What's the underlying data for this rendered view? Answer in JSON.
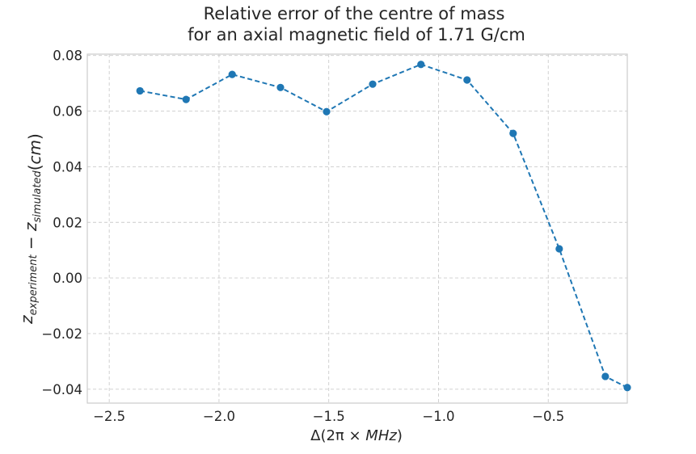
{
  "chart_data": {
    "type": "line",
    "title_lines": [
      "Relative error of the centre of mass",
      "for an axial magnetic field of 1.71 G/cm"
    ],
    "xlabel": "Δ(2π × MHz)",
    "ylabel": "z_{experiment} − z_{simulated}(cm)",
    "xlim": [
      -2.6,
      -0.14
    ],
    "ylim": [
      -0.045,
      0.0805
    ],
    "x_ticks": [
      -2.5,
      -2.0,
      -1.5,
      -1.0,
      -0.5
    ],
    "x_tick_labels": [
      "−2.5",
      "−2.0",
      "−1.5",
      "−1.0",
      "−0.5"
    ],
    "y_ticks": [
      0.08,
      0.06,
      0.04,
      0.02,
      0.0,
      -0.02,
      -0.04
    ],
    "y_tick_labels": [
      "0.08",
      "0.06",
      "0.04",
      "0.02",
      "0.00",
      "−0.02",
      "−0.04"
    ],
    "grid": true,
    "series": [
      {
        "color": "#1f77b4",
        "line_style": "dashed",
        "marker": "circle",
        "x": [
          -2.36,
          -2.15,
          -1.94,
          -1.72,
          -1.51,
          -1.3,
          -1.08,
          -0.87,
          -0.66,
          -0.45,
          -0.24,
          -0.14
        ],
        "y": [
          0.0673,
          0.0642,
          0.0732,
          0.0685,
          0.0598,
          0.0697,
          0.0768,
          0.0712,
          0.052,
          0.0105,
          -0.0354,
          -0.0394
        ]
      }
    ]
  }
}
